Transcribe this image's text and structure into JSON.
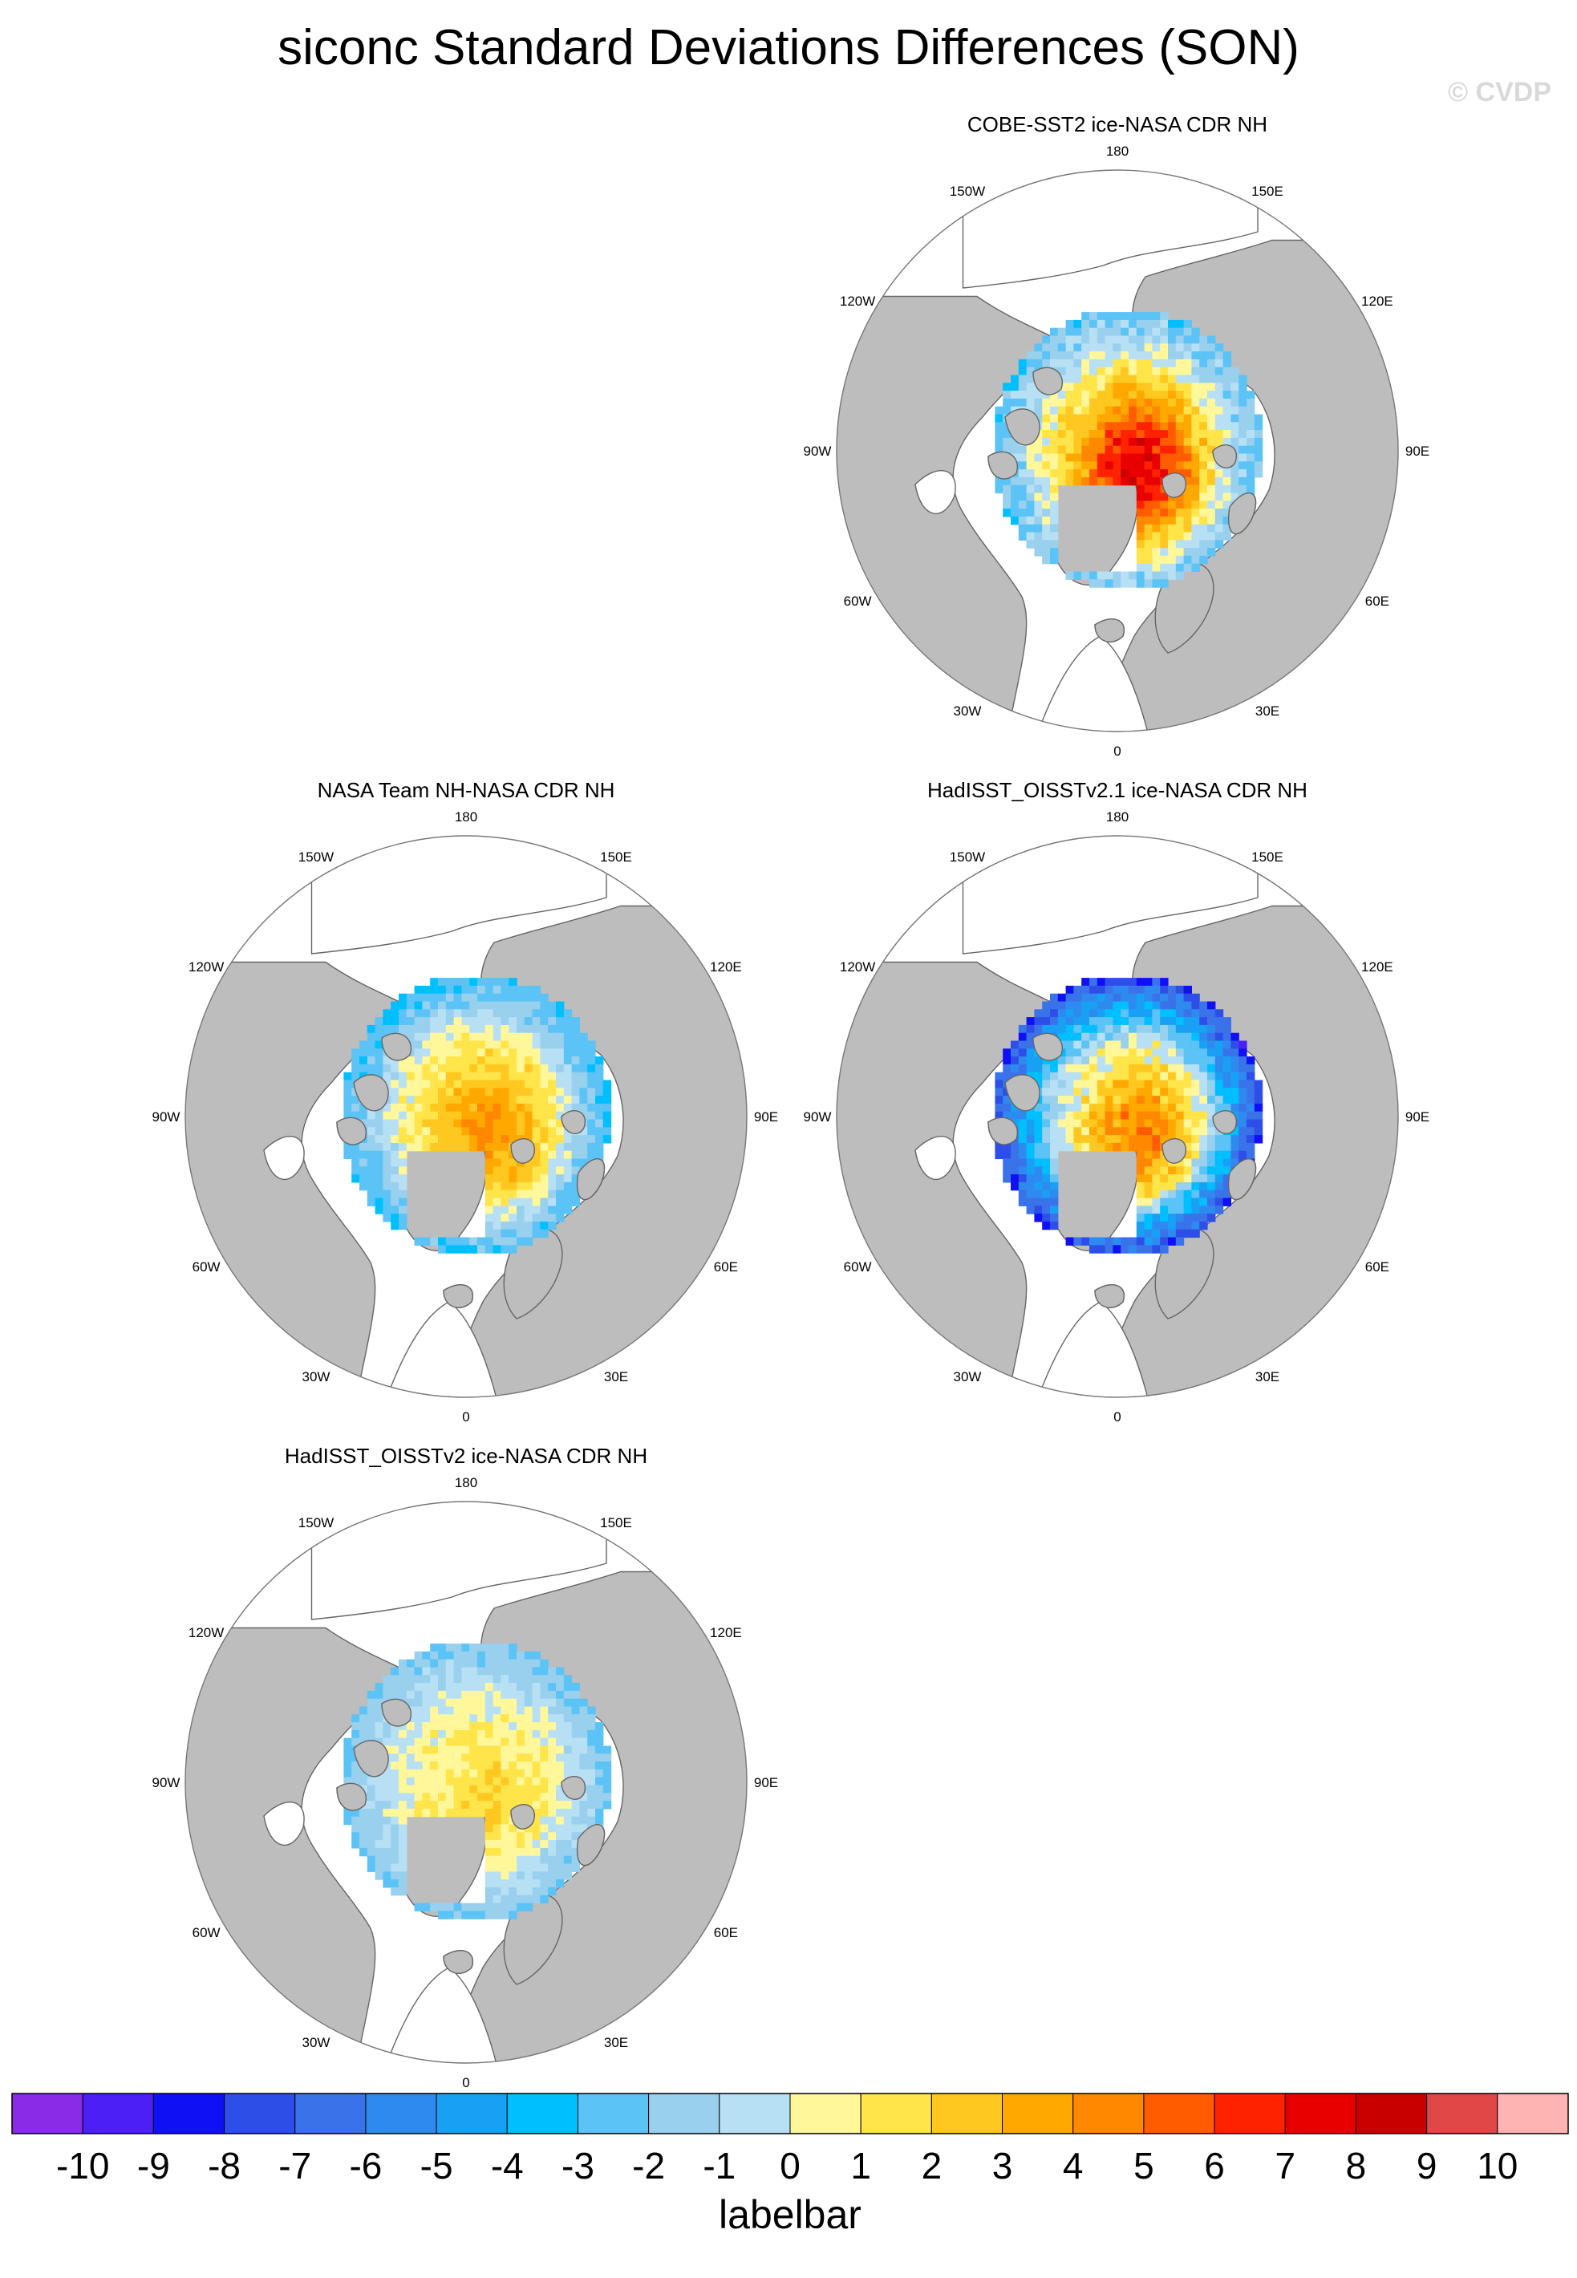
{
  "title": "siconc Standard Deviations Differences (SON)",
  "watermark": "© CVDP",
  "projection": "north-polar-stereographic",
  "colors": {
    "land": "#bdbdbd",
    "ocean": "#ffffff",
    "coast": "#666666"
  },
  "lon_labels": [
    "180",
    "150E",
    "120E",
    "90E",
    "60E",
    "30E",
    "0",
    "30W",
    "60W",
    "90W",
    "120W",
    "150W"
  ],
  "panels": [
    {
      "id": "cobe",
      "title": "COBE-SST2 ice-NASA CDR NH",
      "pattern": "cobe"
    },
    {
      "id": "nasateam",
      "title": "NASA Team NH-NASA CDR NH",
      "pattern": "nasateam"
    },
    {
      "id": "hadisst21",
      "title": "HadISST_OISSTv2.1 ice-NASA CDR NH",
      "pattern": "had21"
    },
    {
      "id": "hadisst2",
      "title": "HadISST_OISSTv2 ice-NASA CDR NH",
      "pattern": "had2"
    }
  ],
  "labelbar": {
    "title": "labelbar",
    "labels": [
      "-10",
      "-9",
      "-8",
      "-7",
      "-6",
      "-5",
      "-4",
      "-3",
      "-2",
      "-1",
      "0",
      "1",
      "2",
      "3",
      "4",
      "5",
      "6",
      "7",
      "8",
      "9",
      "10"
    ],
    "colors": [
      "#8a2be8",
      "#4b1ff5",
      "#1010f5",
      "#2e4ee8",
      "#3a72ea",
      "#2f8af0",
      "#18a0f5",
      "#00bfff",
      "#5bc3f5",
      "#98d0ee",
      "#b8e0f5",
      "#fff79a",
      "#ffe44a",
      "#ffc820",
      "#ffa800",
      "#ff8800",
      "#ff5c00",
      "#ff2200",
      "#e80000",
      "#c80000",
      "#e04848",
      "#ffb4b4"
    ]
  }
}
